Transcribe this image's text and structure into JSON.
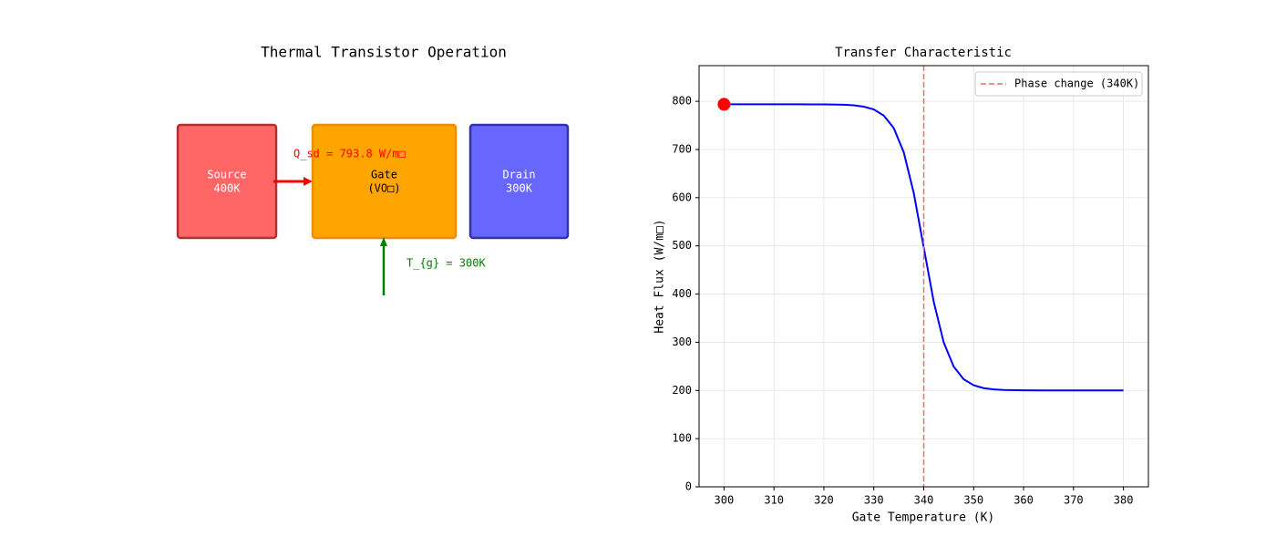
{
  "diagram": {
    "title": "Thermal Transistor Operation",
    "nodes": [
      {
        "lines": [
          "Source",
          "400K"
        ],
        "color": "#ff4c4c",
        "border": "#b03030"
      },
      {
        "lines": [
          "Gate",
          "(VO□)"
        ],
        "color": "#ffa500",
        "border": "#f08c00"
      },
      {
        "lines": [
          "Drain",
          "300K"
        ],
        "color": "#4c4cff",
        "border": "#3030b0"
      }
    ],
    "flux_label": "Q_sd = 793.8 W/m□",
    "gate_label": "T_{g} = 300K"
  },
  "chart_data": {
    "type": "line",
    "title": "Transfer Characteristic",
    "xlabel": "Gate Temperature (K)",
    "ylabel": "Heat Flux (W/m□)",
    "x": [
      300,
      310,
      315,
      320,
      324,
      326,
      328,
      330,
      332,
      334,
      336,
      338,
      340,
      342,
      344,
      346,
      348,
      350,
      352,
      354,
      356,
      360,
      365,
      370,
      380
    ],
    "values": [
      793.8,
      793.8,
      793.8,
      793.6,
      792.8,
      791.6,
      788.9,
      783.1,
      770.5,
      744.4,
      694.1,
      609.7,
      496.9,
      384.1,
      299.7,
      249.4,
      223.3,
      210.7,
      204.8,
      202.2,
      201.0,
      200.2,
      200.0,
      200.0,
      200.0
    ],
    "color": "#0000ff",
    "marker": {
      "x": 300,
      "y": 793.8,
      "color": "#ff0000"
    },
    "vline": {
      "x": 340,
      "label": "Phase change (340K)",
      "color": "#ff6666"
    },
    "xlim": [
      295,
      385
    ],
    "xticks": [
      300,
      310,
      320,
      330,
      340,
      350,
      360,
      370,
      380
    ],
    "ylim": [
      0,
      874
    ],
    "yticks": [
      0,
      100,
      200,
      300,
      400,
      500,
      600,
      700,
      800
    ],
    "grid": true,
    "legend": "upper right"
  }
}
